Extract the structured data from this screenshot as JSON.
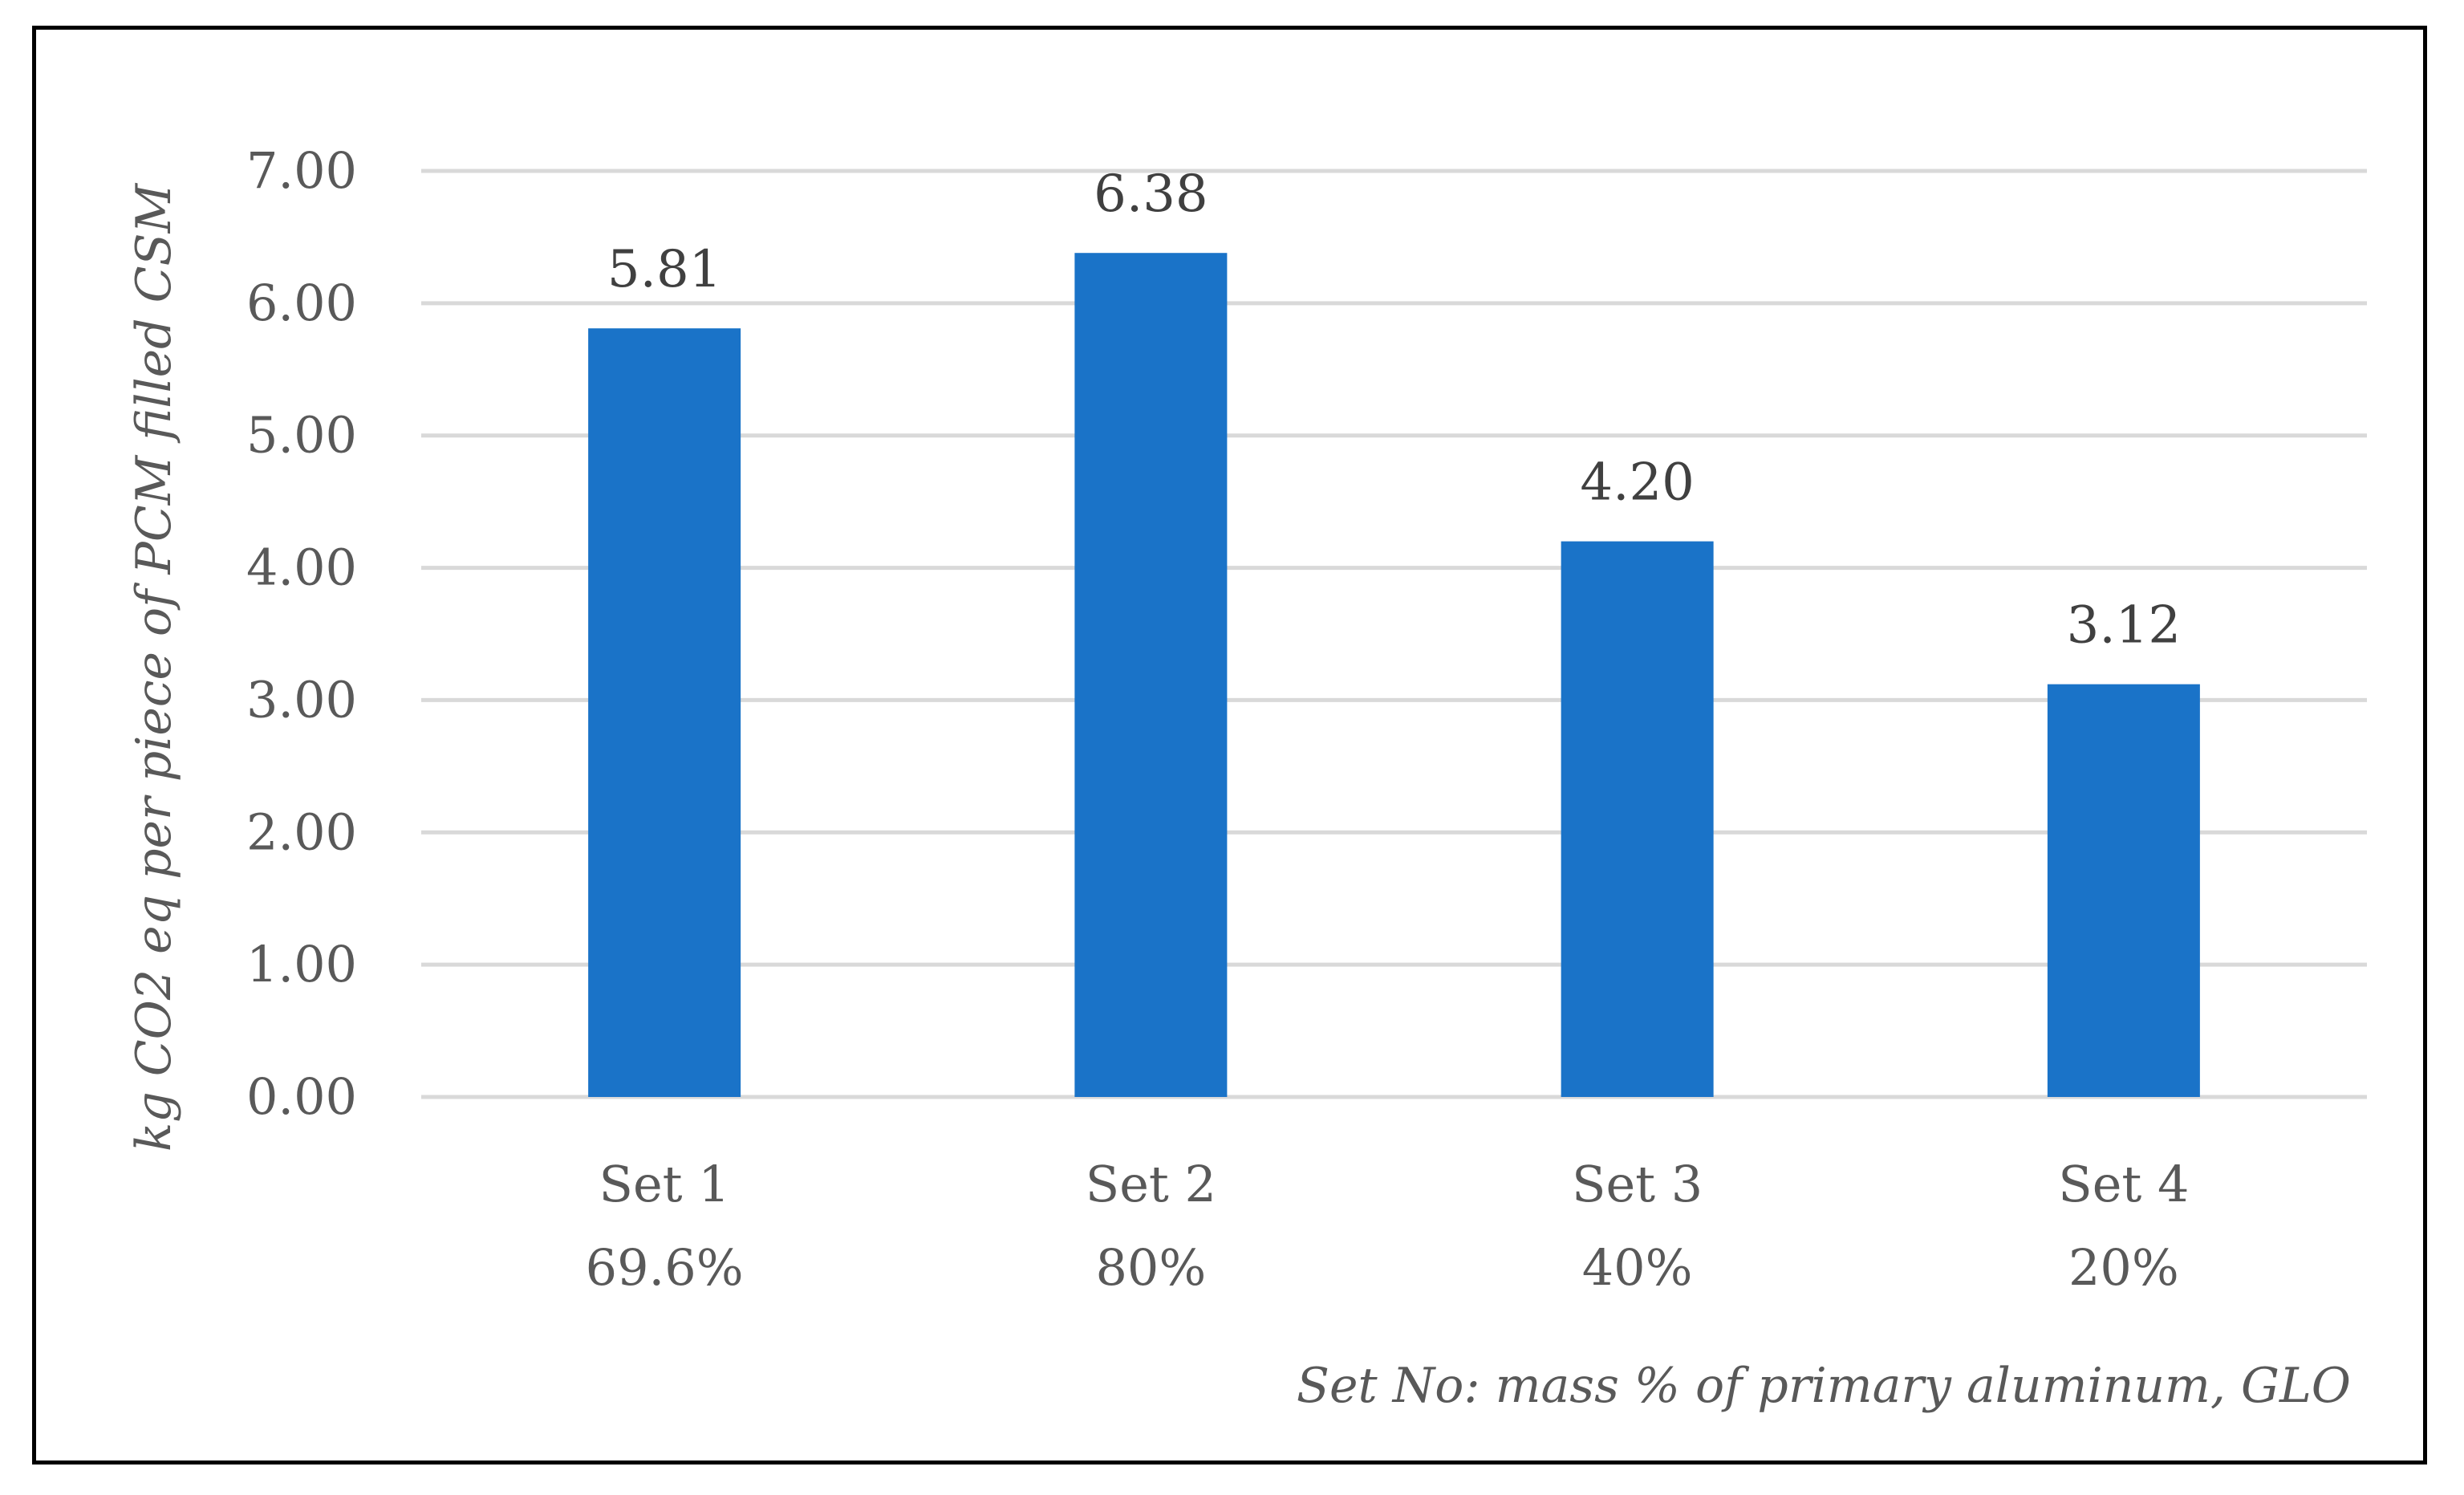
{
  "chart_data": {
    "type": "bar",
    "categories": [
      "Set 1",
      "Set 2",
      "Set 3",
      "Set 4"
    ],
    "category_sublabels": [
      "69.6%",
      "80%",
      "40%",
      "20%"
    ],
    "values": [
      5.81,
      6.38,
      4.2,
      3.12
    ],
    "value_labels": [
      "5.81",
      "6.38",
      "4.20",
      "3.12"
    ],
    "ylabel": "kg CO2 eq per piece of PCM filled CSM",
    "xlabel": "Set No: mass % of primary aluminum, GLO",
    "ylim": [
      0,
      7
    ],
    "yticks": [
      0,
      1,
      2,
      3,
      4,
      5,
      6,
      7
    ],
    "ytick_labels": [
      "0.00",
      "1.00",
      "2.00",
      "3.00",
      "4.00",
      "5.00",
      "6.00",
      "7.00"
    ],
    "grid": true,
    "legend": "none",
    "bar_color": "#1A73C8",
    "grid_color": "#D9D9D9"
  }
}
